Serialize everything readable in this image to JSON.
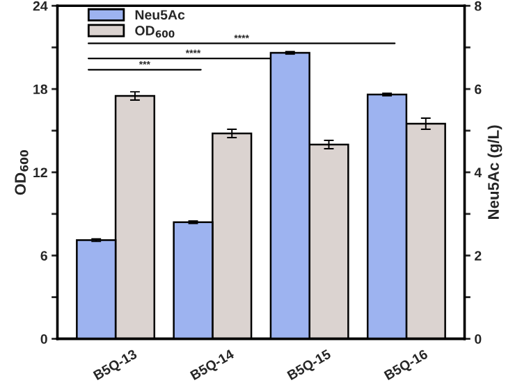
{
  "chart_data": {
    "type": "bar",
    "categories": [
      "B5Q-13",
      "B5Q-14",
      "B5Q-15",
      "B5Q-16"
    ],
    "series": [
      {
        "name": "Neu5Ac",
        "color": "#9db3f0",
        "axis": "y2",
        "values": [
          2.37,
          2.8,
          6.87,
          5.87
        ],
        "errors": [
          0.03,
          0.03,
          0.03,
          0.03
        ]
      },
      {
        "name": "OD$_{600}$",
        "color": "#dbd3d0",
        "axis": "y",
        "values": [
          17.5,
          14.8,
          14.0,
          15.5
        ],
        "errors": [
          0.3,
          0.3,
          0.3,
          0.4
        ]
      }
    ],
    "ylabel": "OD$_{600}$",
    "y2label": "Neu5Ac (g/L)",
    "ylim": [
      0,
      24
    ],
    "yticks": [
      0,
      {
        "value": 3,
        "label": null
      },
      6,
      {
        "value": 9,
        "label": null
      },
      12,
      {
        "value": 15,
        "label": null
      },
      18,
      {
        "value": 21,
        "label": null
      },
      24
    ],
    "y2lim": [
      0,
      8
    ],
    "y2ticks": [
      0,
      {
        "value": 1,
        "label": null
      },
      2,
      {
        "value": 3,
        "label": null
      },
      4,
      {
        "value": 5,
        "label": null
      },
      6,
      {
        "value": 7,
        "label": null
      },
      8
    ],
    "annotations": [
      "***",
      "****",
      "****"
    ],
    "legend": "top left",
    "grid": false
  }
}
